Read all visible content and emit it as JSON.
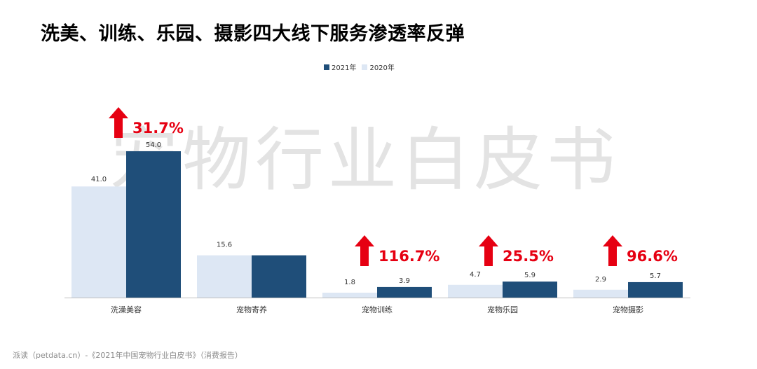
{
  "header": {
    "title": "洗美、训练、乐园、摄影四大线下服务渗透率反弹"
  },
  "watermark": {
    "text": "宠物行业白皮书"
  },
  "footer": {
    "source": "派读（petdata.cn）-《2021年中国宠物行业白皮书》（消费报告）"
  },
  "colors": {
    "series_2021": "#1f4e79",
    "series_2020": "#dde7f4",
    "arrow": "#e60012",
    "watermark": "#e3e3e3"
  },
  "icons": [
    "red-up-arrow-icon"
  ],
  "chart_data": {
    "type": "bar",
    "categories": [
      "洗澡美容",
      "宠物寄养",
      "宠物训练",
      "宠物乐园",
      "宠物摄影"
    ],
    "series": [
      {
        "name": "2020年",
        "values": [
          41.0,
          15.6,
          1.8,
          4.7,
          2.9
        ],
        "labels": [
          "41.0",
          "15.6",
          "1.8",
          "4.7",
          "2.9"
        ]
      },
      {
        "name": "2021年",
        "values": [
          54.0,
          15.6,
          3.9,
          5.9,
          5.7
        ],
        "labels": [
          "54.0",
          "",
          "3.9",
          "5.9",
          "5.7"
        ]
      }
    ],
    "legend": {
      "placement": "top",
      "items": [
        "2021年",
        "2020年"
      ]
    },
    "growth_annotations": [
      {
        "category": "洗澡美容",
        "text": "31.7%"
      },
      {
        "category": "宠物训练",
        "text": "116.7%"
      },
      {
        "category": "宠物乐园",
        "text": "25.5%"
      },
      {
        "category": "宠物摄影",
        "text": "96.6%"
      }
    ],
    "ylim": [
      0,
      54
    ],
    "grid": false
  }
}
